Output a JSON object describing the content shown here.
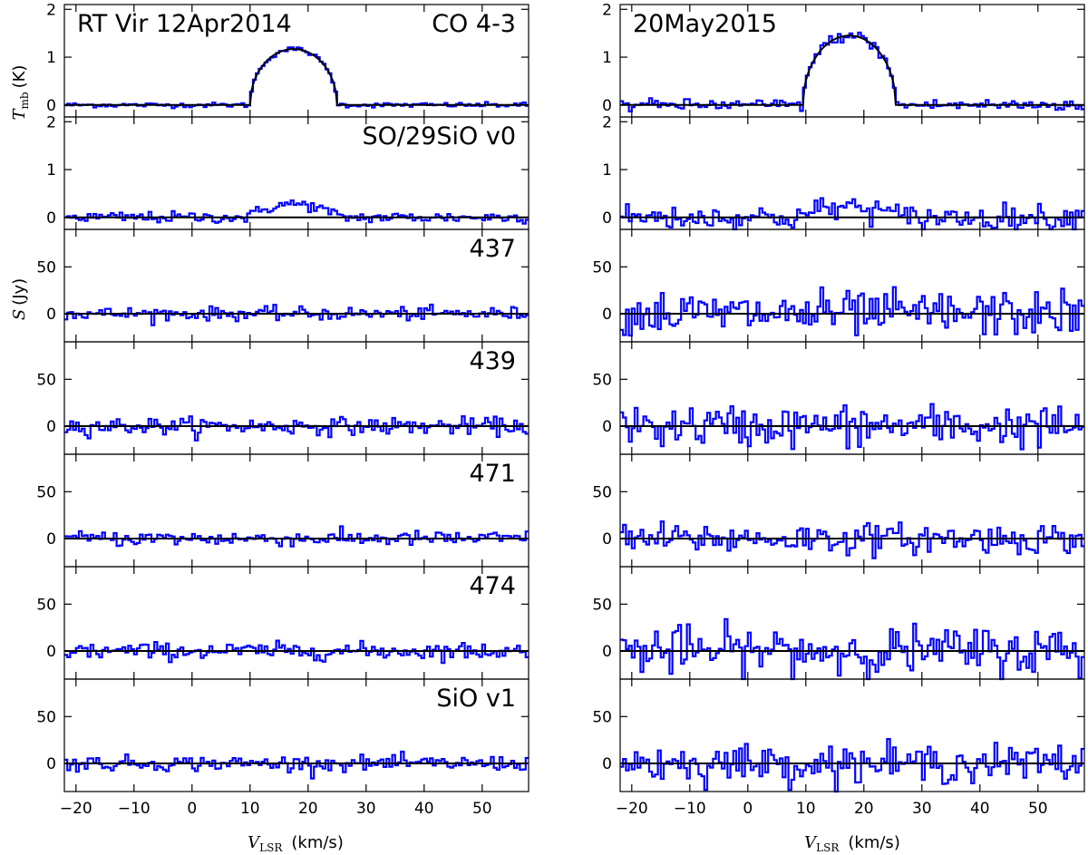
{
  "colors": {
    "spectrum": "#0000ff",
    "model": "#000000",
    "frame": "#000000"
  },
  "axes": {
    "xlabel_main": "V",
    "xlabel_sub": "LSR",
    "xlabel_unit": "(km/s)",
    "ylabel_top_main": "T",
    "ylabel_top_sub": "mb",
    "ylabel_top_unit": "(K)",
    "ylabel_bottom_main": "S",
    "ylabel_bottom_unit": "(Jy)",
    "xticks": [
      "−20",
      "−10",
      "0",
      "10",
      "20",
      "30",
      "40",
      "50"
    ],
    "xtick_values": [
      -20,
      -10,
      0,
      10,
      20,
      30,
      40,
      50
    ],
    "xlim": [
      -22,
      58
    ],
    "k_yticks": [
      "0",
      "1",
      "2"
    ],
    "k_ytick_values": [
      0,
      1,
      2
    ],
    "k_ylim": [
      -0.25,
      2.1
    ],
    "jy_yticks": [
      "0",
      "50"
    ],
    "jy_ytick_values": [
      0,
      50
    ],
    "jy_ylim": [
      -30,
      90
    ]
  },
  "chart_data": {
    "type": "line",
    "step_style": "histogram",
    "columns": [
      {
        "epoch": "12Apr2014",
        "panels": [
          {
            "label_left": "RT Vir 12Apr2014",
            "label_right": "CO 4-3",
            "unit": "K",
            "channel_width": 0.5,
            "noise_rms": 0.025,
            "model": {
              "shape": "parabolic",
              "center": 17.5,
              "half_width": 7.5,
              "peak": 1.17
            }
          },
          {
            "label_right": "SO/29SiO v0",
            "unit": "K",
            "channel_width": 0.5,
            "noise_rms": 0.06,
            "model": {
              "shape": "none"
            },
            "emission": {
              "center": 17.5,
              "half_width": 8,
              "peak": 0.28
            }
          },
          {
            "label_right": "437",
            "unit": "Jy",
            "channel_width": 0.5,
            "noise_rms": 3.5
          },
          {
            "label_right": "439",
            "unit": "Jy",
            "channel_width": 0.5,
            "noise_rms": 4.5
          },
          {
            "label_right": "471",
            "unit": "Jy",
            "channel_width": 0.5,
            "noise_rms": 4.0
          },
          {
            "label_right": "474",
            "unit": "Jy",
            "channel_width": 0.5,
            "noise_rms": 4.5
          },
          {
            "label_right": "SiO v1",
            "unit": "Jy",
            "channel_width": 0.5,
            "noise_rms": 4.0
          }
        ]
      },
      {
        "epoch": "20May2015",
        "panels": [
          {
            "label_left": "20May2015",
            "label_right": "",
            "unit": "K",
            "channel_width": 0.5,
            "noise_rms": 0.06,
            "model": {
              "shape": "parabolic",
              "center": 17.5,
              "half_width": 8.0,
              "peak": 1.45
            }
          },
          {
            "label_right": "",
            "unit": "K",
            "channel_width": 0.5,
            "noise_rms": 0.13,
            "model": {
              "shape": "none"
            },
            "emission": {
              "center": 17.5,
              "half_width": 9,
              "peak": 0.22
            }
          },
          {
            "label_right": "",
            "unit": "Jy",
            "channel_width": 0.5,
            "noise_rms": 12
          },
          {
            "label_right": "",
            "unit": "Jy",
            "channel_width": 0.5,
            "noise_rms": 11
          },
          {
            "label_right": "",
            "unit": "Jy",
            "channel_width": 0.5,
            "noise_rms": 8
          },
          {
            "label_right": "",
            "unit": "Jy",
            "channel_width": 0.5,
            "noise_rms": 13
          },
          {
            "label_right": "",
            "unit": "Jy",
            "channel_width": 0.5,
            "noise_rms": 10
          }
        ]
      }
    ]
  }
}
